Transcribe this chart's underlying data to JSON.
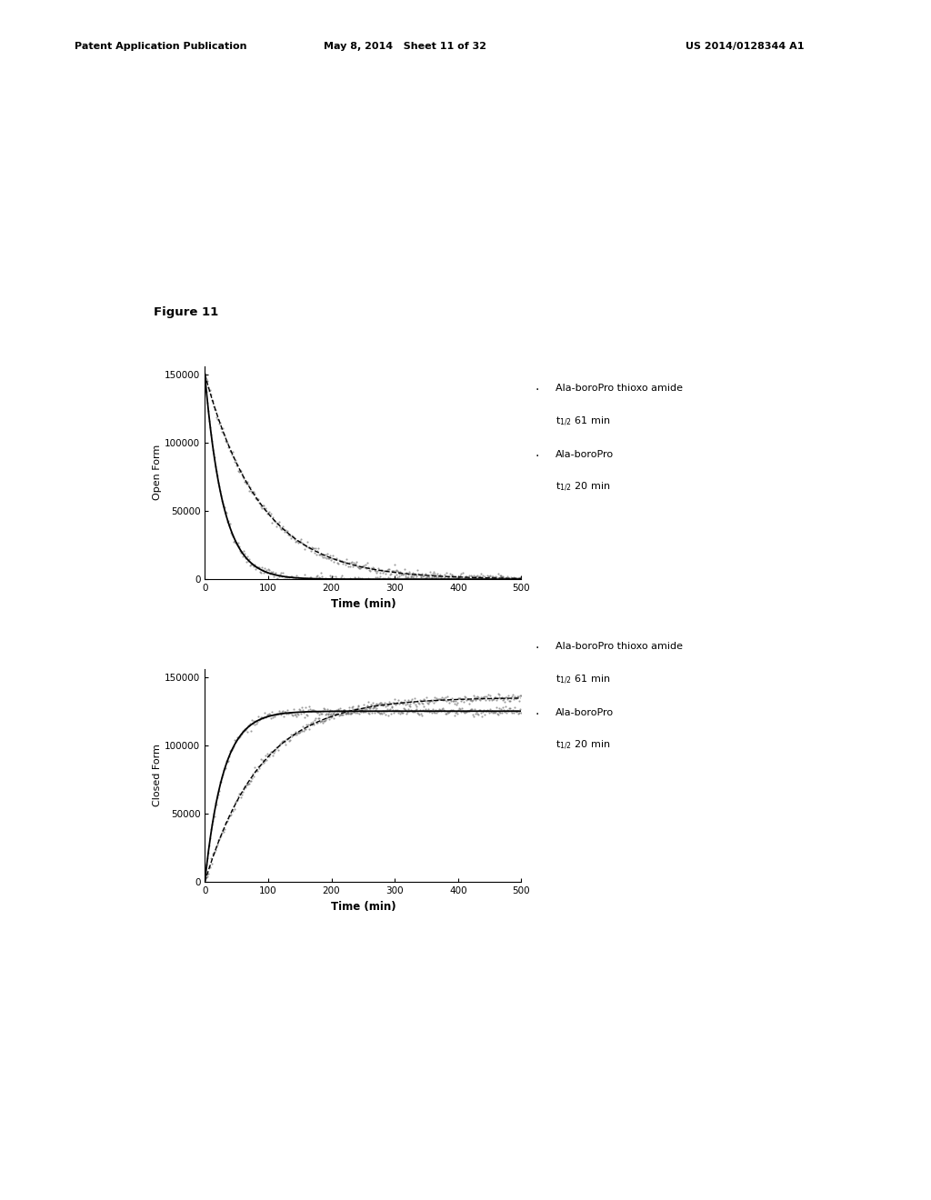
{
  "header_left": "Patent Application Publication",
  "header_center": "May 8, 2014   Sheet 11 of 32",
  "header_right": "US 2014/0128344 A1",
  "figure_label": "Figure 11",
  "t_half_slow": 61,
  "t_half_fast": 20,
  "A_open": 150000,
  "plateau_slow": 135000,
  "plateau_fast": 125000,
  "xmax": 500,
  "ymax_open": 150000,
  "ymax_closed": 150000,
  "yticks_open": [
    0,
    50000,
    100000,
    150000
  ],
  "yticks_closed": [
    0,
    50000,
    100000,
    150000
  ],
  "xticks": [
    0,
    100,
    200,
    300,
    400,
    500
  ],
  "xlabel": "Time (min)",
  "ylabel_top": "Open Form",
  "ylabel_bottom": "Closed Form",
  "leg1_text1": "Ala-boroPro thioxo amide",
  "leg1_text2": "t$_{1/2}$ 61 min",
  "leg1_text3": "Ala-boroPro",
  "leg1_text4": "t$_{1/2}$ 20 min",
  "leg2_text1": "Ala-boroPro thioxo amide",
  "leg2_text2": "t$_{1/2}$ 61 min",
  "leg2_text3": "Ala-boroPro",
  "leg2_text4": "t$_{1/2}$ 20 min",
  "color_line": "#000000",
  "color_scatter": "#555555",
  "background_color": "#ffffff",
  "fig_width": 10.24,
  "fig_height": 13.2
}
